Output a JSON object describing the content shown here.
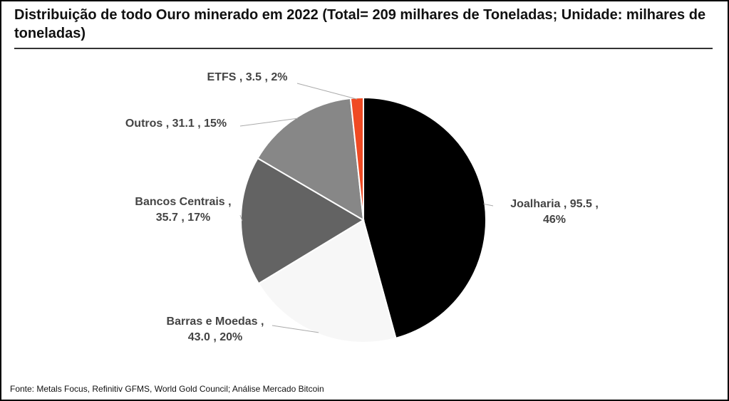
{
  "chart_data": {
    "type": "pie",
    "title": "Distribuição de todo Ouro minerado em 2022 (Total= 209 milhares de Toneladas; Unidade: milhares de toneladas)",
    "source": "Fonte: Metals Focus, Refinitiv GFMS, World Gold Council; Análise Mercado Bitcoin",
    "start": "12 o'clock, clockwise",
    "slices": [
      {
        "name": "Joalharia",
        "value": 95.5,
        "percent": "46%",
        "color": "#000000",
        "label_lines": [
          "Joalharia ,  95.5 ,",
          "46%"
        ]
      },
      {
        "name": "Barras e Moedas",
        "value": 43.0,
        "percent": "20%",
        "color": "#f7f7f7",
        "label_lines": [
          "Barras e Moedas ,",
          "43.0 , 20%"
        ]
      },
      {
        "name": "Bancos Centrais",
        "value": 35.7,
        "percent": "17%",
        "color": "#636363",
        "label_lines": [
          "Bancos Centrais ,",
          "35.7 , 17%"
        ]
      },
      {
        "name": "Outros",
        "value": 31.1,
        "percent": "15%",
        "color": "#878787",
        "label_lines": [
          "Outros ,  31.1 , 15%"
        ]
      },
      {
        "name": "ETFS",
        "value": 3.5,
        "percent": "2%",
        "color": "#f04a23",
        "label_lines": [
          "ETFS ,  3.5 , 2%"
        ]
      }
    ]
  }
}
